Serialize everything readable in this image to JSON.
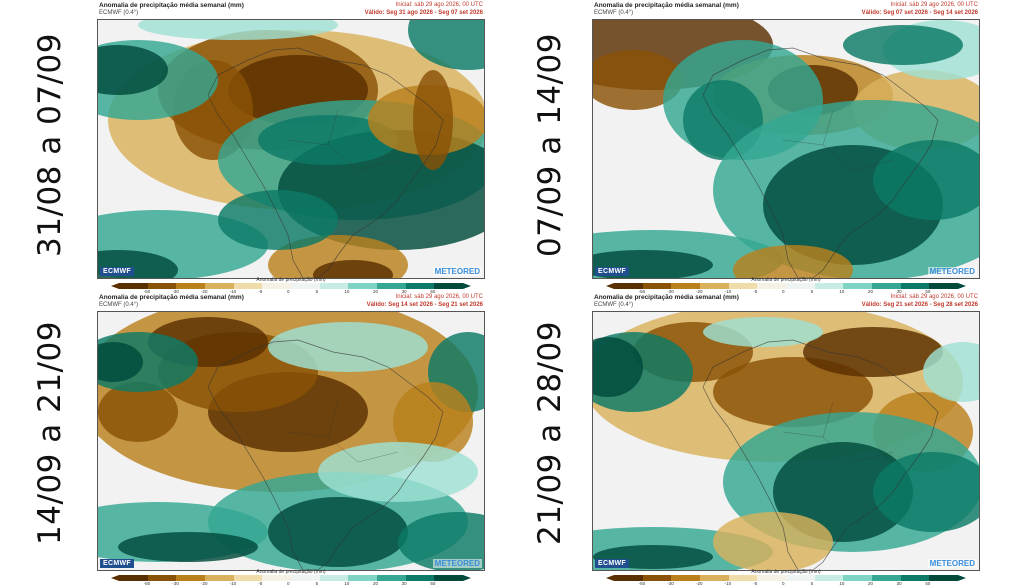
{
  "labels": [
    "31/08 a 07/09",
    "07/09 a 14/09",
    "14/09 a 21/09",
    "21/09 a 28/09"
  ],
  "panels": [
    {
      "title": "Anomalia de precipitação média semanal (mm)",
      "model": "ECMWF (0.4°)",
      "initial": "Inicial: sáb 29 ago 2026, 00 UTC",
      "valid": "Válido: Seg 31 ago 2026 - Seg 07 set 2026",
      "colorbar_title": "Anomalia de precipitação (mm)",
      "brand_left": "ECMWF",
      "brand_right": "METEORED"
    },
    {
      "title": "Anomalia de precipitação média semanal (mm)",
      "model": "ECMWF (0.4°)",
      "initial": "Inicial: sáb 29 ago 2026, 00 UTC",
      "valid": "Válido: Seg 07 set 2026 - Seg 14 set 2026",
      "colorbar_title": "Anomalia de precipitação (mm)",
      "brand_left": "ECMWF",
      "brand_right": "METEORED"
    },
    {
      "title": "Anomalia de precipitação média semanal (mm)",
      "model": "ECMWF (0.4°)",
      "initial": "Inicial: sáb 29 ago 2026, 00 UTC",
      "valid": "Válido: Seg 14 set 2026 - Seg 21 set 2026",
      "colorbar_title": "Anomalia de precipitação (mm)",
      "brand_left": "ECMWF",
      "brand_right": "METEORED"
    },
    {
      "title": "Anomalia de precipitação média semanal (mm)",
      "model": "ECMWF (0.4°)",
      "initial": "Inicial: sáb 29 ago 2026, 00 UTC",
      "valid": "Válido: Seg 21 set 2026 - Seg 28 set 2026",
      "colorbar_title": "Anomalia de precipitação (mm)",
      "brand_left": "ECMWF",
      "brand_right": "METEORED"
    }
  ],
  "colorbar": {
    "ticks": [
      "-50",
      "-30",
      "-20",
      "-10",
      "-5",
      "0",
      "5",
      "10",
      "20",
      "30",
      "50"
    ],
    "colors": [
      "#5a3000",
      "#8a5206",
      "#b9801c",
      "#d9b15c",
      "#f0dca8",
      "#f5f1e6",
      "#eef4f2",
      "#c6ece5",
      "#7fd3c3",
      "#35a793",
      "#0c7a66",
      "#004a3c"
    ]
  },
  "legend": {
    "dry_color": "#8a5206",
    "wet_color": "#0c7a66",
    "neutral_color": "#f2f2f2"
  }
}
